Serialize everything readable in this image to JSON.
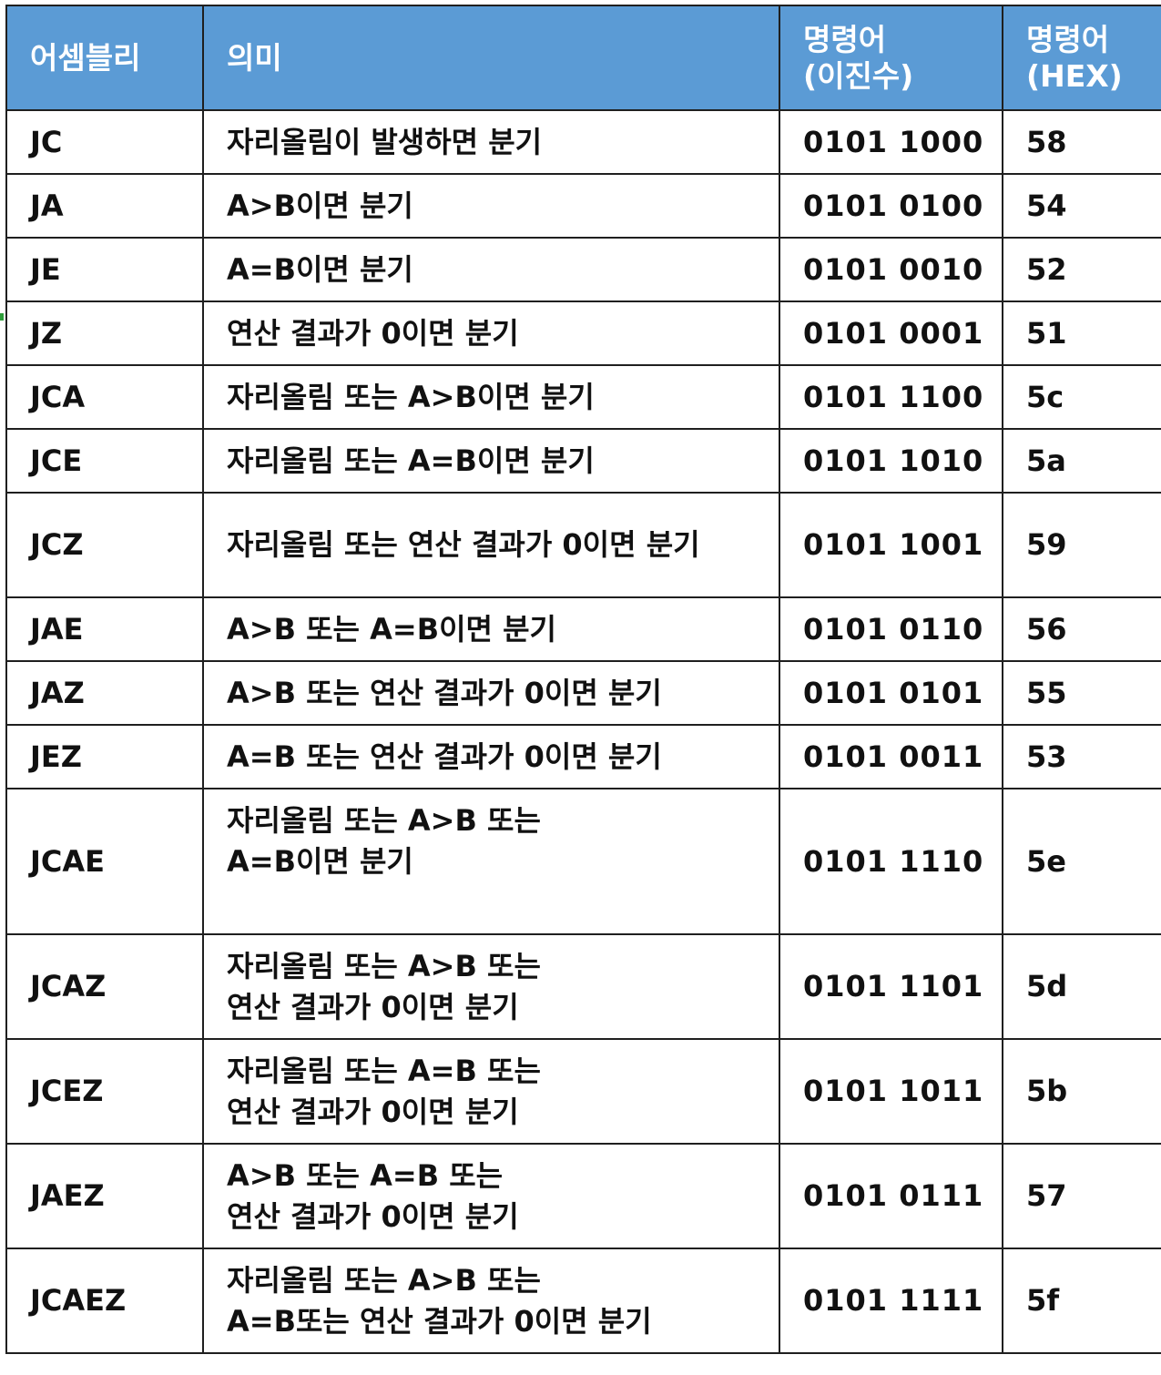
{
  "table": {
    "headers": {
      "assembly": "어셈블리",
      "meaning": "의미",
      "binary_line1": "명령어",
      "binary_line2": "(이진수)",
      "hex_line1": "명령어",
      "hex_line2": "(HEX)"
    },
    "rows": [
      {
        "asm": "JC",
        "meaning": "자리올림이 발생하면 분기",
        "bin": "0101 1000",
        "hex": "58"
      },
      {
        "asm": "JA",
        "meaning": "A>B이면 분기",
        "bin": "0101 0100",
        "hex": "54"
      },
      {
        "asm": "JE",
        "meaning": "A=B이면 분기",
        "bin": "0101 0010",
        "hex": "52"
      },
      {
        "asm": "JZ",
        "meaning": "연산 결과가 0이면 분기",
        "bin": "0101 0001",
        "hex": "51"
      },
      {
        "asm": "JCA",
        "meaning": "자리올림 또는 A>B이면 분기",
        "bin": "0101 1100",
        "hex": "5c"
      },
      {
        "asm": "JCE",
        "meaning": "자리올림 또는 A=B이면 분기",
        "bin": "0101 1010",
        "hex": "5a"
      },
      {
        "asm": "JCZ",
        "meaning": "자리올림 또는 연산 결과가 0이면 분기",
        "bin": "0101 1001",
        "hex": "59"
      },
      {
        "asm": "JAE",
        "meaning": "A>B 또는 A=B이면 분기",
        "bin": "0101 0110",
        "hex": "56"
      },
      {
        "asm": "JAZ",
        "meaning": "A>B 또는 연산 결과가 0이면 분기",
        "bin": "0101 0101",
        "hex": "55"
      },
      {
        "asm": "JEZ",
        "meaning": "A=B 또는 연산 결과가 0이면 분기",
        "bin": "0101 0011",
        "hex": "53"
      },
      {
        "asm": "JCAE",
        "meaning_line1": "자리올림 또는 A>B 또는",
        "meaning_line2": "A=B이면 분기",
        "bin": "0101 1110",
        "hex": "5e"
      },
      {
        "asm": "JCAZ",
        "meaning_line1": "자리올림 또는 A>B 또는",
        "meaning_line2": "연산 결과가 0이면 분기",
        "bin": "0101 1101",
        "hex": "5d"
      },
      {
        "asm": "JCEZ",
        "meaning_line1": "자리올림 또는 A=B 또는",
        "meaning_line2": "연산 결과가 0이면 분기",
        "bin": "0101 1011",
        "hex": "5b"
      },
      {
        "asm": "JAEZ",
        "meaning_line1": "A>B 또는 A=B 또는",
        "meaning_line2": "연산 결과가 0이면 분기",
        "bin": "0101 0111",
        "hex": "57"
      },
      {
        "asm": "JCAEZ",
        "meaning_line1": "자리올림 또는 A>B 또는",
        "meaning_line2": "A=B또는 연산 결과가 0이면 분기",
        "bin": "0101 1111",
        "hex": "5f"
      }
    ]
  },
  "colors": {
    "header_background": "#5b9bd5",
    "header_text": "#ffffff",
    "border": "#1f1f1f",
    "body_text": "#111111"
  }
}
